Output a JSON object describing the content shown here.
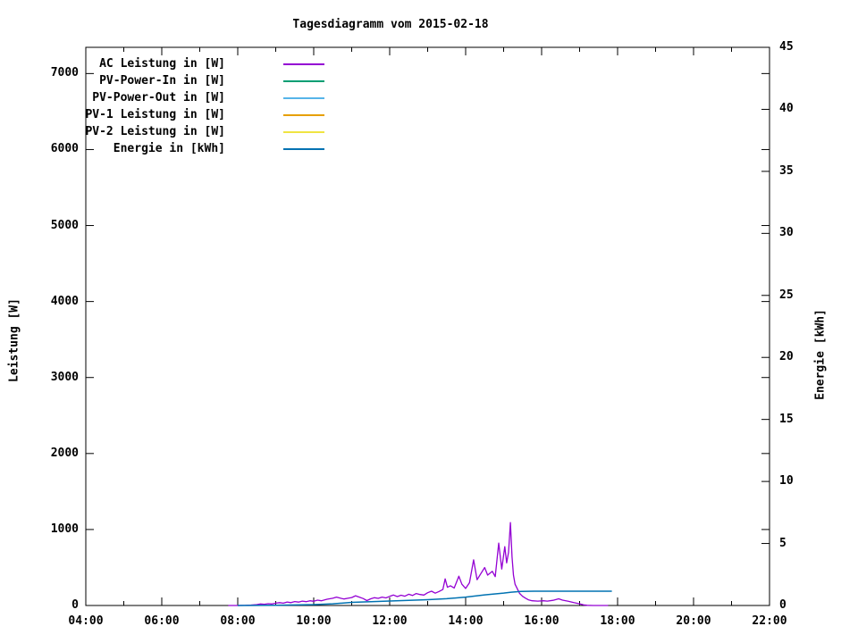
{
  "title": "Tagesdiagramm vom 2015-02-18",
  "axes": {
    "left_label": "Leistung [W]",
    "right_label": "Energie [kWh]",
    "left_ticks": [
      "0",
      "1000",
      "2000",
      "3000",
      "4000",
      "5000",
      "6000",
      "7000"
    ],
    "right_ticks": [
      "0",
      "5",
      "10",
      "15",
      "20",
      "25",
      "30",
      "35",
      "40",
      "45"
    ],
    "x_ticks": [
      "04:00",
      "06:00",
      "08:00",
      "10:00",
      "12:00",
      "14:00",
      "16:00",
      "18:00",
      "20:00",
      "22:00"
    ]
  },
  "legend": [
    {
      "label": "AC Leistung in [W]",
      "color": "#9400D3"
    },
    {
      "label": "PV-Power-In in [W]",
      "color": "#009E73"
    },
    {
      "label": "PV-Power-Out in [W]",
      "color": "#56B4E9"
    },
    {
      "label": "PV-1 Leistung in [W]",
      "color": "#E69F00"
    },
    {
      "label": "PV-2 Leistung in [W]",
      "color": "#F0E442"
    },
    {
      "label": "Energie in [kWh]",
      "color": "#0072B2"
    }
  ],
  "chart_data": {
    "type": "line",
    "title": "Tagesdiagramm vom 2015-02-18",
    "xlabel": "",
    "x_unit": "time of day, decimal hours",
    "xlim_hours": [
      4,
      22
    ],
    "x_major_tick_hours": 2,
    "x_minor_tick_hours": 1,
    "y_left": {
      "label": "Leistung [W]",
      "lim": [
        0,
        7345
      ],
      "tick_step": 1000,
      "last_tick": 7000
    },
    "y_right": {
      "label": "Energie [kWh]",
      "lim": [
        0,
        45
      ],
      "tick_step": 5
    },
    "grid": false,
    "legend_position": "top-left-inside",
    "background": "#ffffff",
    "border_color": "#000000",
    "series": [
      {
        "name": "AC Leistung in [W]",
        "color": "#9400D3",
        "axis": "left",
        "width": 1.3,
        "points": [
          [
            7.75,
            0
          ],
          [
            8.0,
            0
          ],
          [
            8.2,
            2
          ],
          [
            8.35,
            6
          ],
          [
            8.5,
            12
          ],
          [
            8.6,
            20
          ],
          [
            8.7,
            16
          ],
          [
            8.8,
            24
          ],
          [
            8.9,
            20
          ],
          [
            9.0,
            30
          ],
          [
            9.1,
            38
          ],
          [
            9.2,
            30
          ],
          [
            9.3,
            46
          ],
          [
            9.4,
            38
          ],
          [
            9.5,
            52
          ],
          [
            9.6,
            45
          ],
          [
            9.7,
            58
          ],
          [
            9.8,
            50
          ],
          [
            9.9,
            62
          ],
          [
            10.0,
            55
          ],
          [
            10.1,
            70
          ],
          [
            10.2,
            62
          ],
          [
            10.35,
            82
          ],
          [
            10.5,
            95
          ],
          [
            10.6,
            110
          ],
          [
            10.7,
            96
          ],
          [
            10.8,
            86
          ],
          [
            10.9,
            95
          ],
          [
            11.0,
            105
          ],
          [
            11.1,
            128
          ],
          [
            11.2,
            110
          ],
          [
            11.3,
            92
          ],
          [
            11.4,
            65
          ],
          [
            11.5,
            88
          ],
          [
            11.6,
            102
          ],
          [
            11.7,
            94
          ],
          [
            11.8,
            110
          ],
          [
            11.9,
            100
          ],
          [
            12.0,
            120
          ],
          [
            12.1,
            138
          ],
          [
            12.2,
            118
          ],
          [
            12.3,
            135
          ],
          [
            12.4,
            122
          ],
          [
            12.5,
            148
          ],
          [
            12.6,
            132
          ],
          [
            12.7,
            158
          ],
          [
            12.8,
            144
          ],
          [
            12.9,
            138
          ],
          [
            13.0,
            168
          ],
          [
            13.1,
            188
          ],
          [
            13.2,
            162
          ],
          [
            13.3,
            185
          ],
          [
            13.4,
            210
          ],
          [
            13.46,
            350
          ],
          [
            13.52,
            240
          ],
          [
            13.6,
            260
          ],
          [
            13.7,
            230
          ],
          [
            13.82,
            385
          ],
          [
            13.9,
            280
          ],
          [
            14.0,
            225
          ],
          [
            14.1,
            300
          ],
          [
            14.21,
            600
          ],
          [
            14.3,
            340
          ],
          [
            14.4,
            420
          ],
          [
            14.5,
            500
          ],
          [
            14.58,
            400
          ],
          [
            14.7,
            450
          ],
          [
            14.78,
            380
          ],
          [
            14.87,
            820
          ],
          [
            14.95,
            480
          ],
          [
            15.03,
            775
          ],
          [
            15.08,
            560
          ],
          [
            15.13,
            700
          ],
          [
            15.18,
            1090
          ],
          [
            15.22,
            640
          ],
          [
            15.26,
            400
          ],
          [
            15.3,
            280
          ],
          [
            15.35,
            230
          ],
          [
            15.42,
            160
          ],
          [
            15.5,
            120
          ],
          [
            15.58,
            95
          ],
          [
            15.65,
            75
          ],
          [
            15.75,
            62
          ],
          [
            15.9,
            58
          ],
          [
            16.05,
            62
          ],
          [
            16.15,
            58
          ],
          [
            16.3,
            68
          ],
          [
            16.45,
            88
          ],
          [
            16.55,
            70
          ],
          [
            16.7,
            55
          ],
          [
            16.85,
            38
          ],
          [
            17.0,
            22
          ],
          [
            17.1,
            8
          ],
          [
            17.2,
            2
          ],
          [
            17.35,
            0
          ],
          [
            17.75,
            0
          ]
        ]
      },
      {
        "name": "PV-Power-In in [W]",
        "color": "#009E73",
        "axis": "left",
        "width": 1.3,
        "points": []
      },
      {
        "name": "PV-Power-Out in [W]",
        "color": "#56B4E9",
        "axis": "left",
        "width": 1.3,
        "points": []
      },
      {
        "name": "PV-1 Leistung in [W]",
        "color": "#E69F00",
        "axis": "left",
        "width": 1.3,
        "points": []
      },
      {
        "name": "PV-2 Leistung in [W]",
        "color": "#F0E442",
        "axis": "left",
        "width": 1.3,
        "points": []
      },
      {
        "name": "Energie in [kWh]",
        "color": "#0072B2",
        "axis": "right",
        "width": 1.5,
        "points": [
          [
            8.0,
            0
          ],
          [
            8.5,
            0.01
          ],
          [
            9.0,
            0.02
          ],
          [
            9.5,
            0.04
          ],
          [
            10.0,
            0.07
          ],
          [
            10.5,
            0.14
          ],
          [
            11.0,
            0.25
          ],
          [
            11.5,
            0.31
          ],
          [
            12.0,
            0.36
          ],
          [
            12.5,
            0.42
          ],
          [
            13.0,
            0.47
          ],
          [
            13.5,
            0.55
          ],
          [
            14.0,
            0.68
          ],
          [
            14.5,
            0.86
          ],
          [
            15.0,
            1.0
          ],
          [
            15.2,
            1.07
          ],
          [
            15.45,
            1.13
          ],
          [
            15.8,
            1.15
          ],
          [
            17.85,
            1.15
          ]
        ]
      }
    ]
  }
}
